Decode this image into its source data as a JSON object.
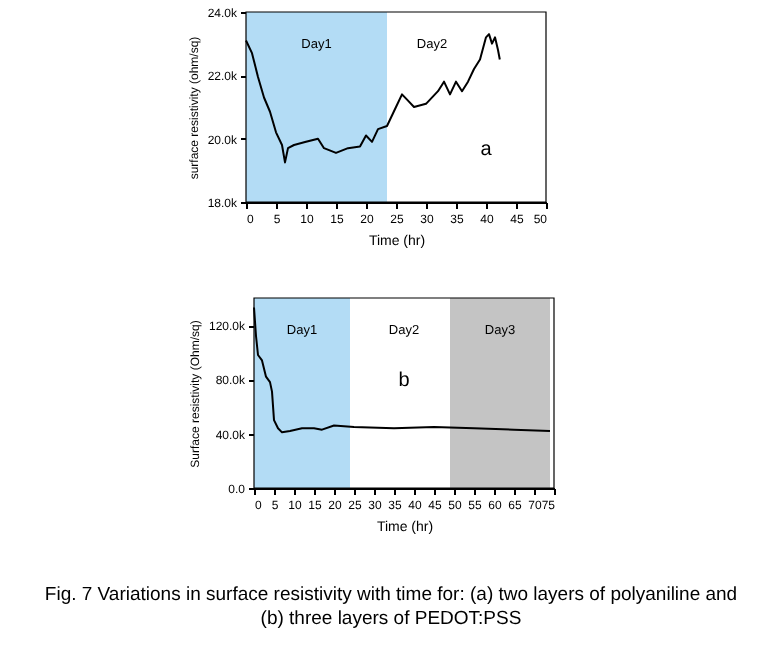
{
  "chart_data": [
    {
      "type": "line",
      "xlabel": "Time (hr)",
      "ylabel": "surface resistivity (ohm/sq)",
      "x": [
        0,
        1,
        2,
        3,
        4,
        5,
        6,
        6.5,
        7,
        8,
        10,
        12,
        13,
        15,
        17,
        19,
        20,
        21,
        22,
        23.5,
        25,
        26,
        27,
        28,
        30,
        32,
        33,
        34,
        35,
        36,
        37,
        38,
        39,
        40,
        40.5,
        41,
        41.5,
        42,
        42.3
      ],
      "series": [
        {
          "color": "#000000",
          "values": [
            23100,
            22700,
            21950,
            21300,
            20850,
            20200,
            19800,
            19250,
            19700,
            19800,
            19900,
            20000,
            19700,
            19550,
            19700,
            19750,
            20100,
            19900,
            20300,
            20400,
            21000,
            21400,
            21200,
            21000,
            21100,
            21500,
            21800,
            21400,
            21800,
            21500,
            21800,
            22200,
            22500,
            23200,
            23300,
            23000,
            23200,
            22800,
            22500
          ]
        }
      ],
      "xlim": [
        0,
        50
      ],
      "xticks": [
        0,
        5,
        10,
        15,
        20,
        25,
        30,
        35,
        40,
        45,
        50
      ],
      "ylim": [
        18000,
        24000
      ],
      "yticks": [
        {
          "value": 18000,
          "label": "18.0k"
        },
        {
          "value": 20000,
          "label": "20.0k"
        },
        {
          "value": 22000,
          "label": "22.0k"
        },
        {
          "value": 24000,
          "label": "24.0k"
        }
      ],
      "bands": [
        {
          "axis": "x",
          "from": 0,
          "to": 23.5,
          "label": "Day1",
          "color": "#b3dcf5"
        }
      ],
      "annotations": [
        "Day2",
        "a"
      ]
    },
    {
      "type": "line",
      "xlabel": "Time (hr)",
      "ylabel": "Surface resistivity (Ohm/sq)",
      "x": [
        0,
        0.5,
        1,
        2,
        3,
        4,
        4.5,
        5,
        6,
        7,
        9,
        12,
        15,
        17,
        20,
        25,
        35,
        45,
        55,
        65,
        74
      ],
      "series": [
        {
          "color": "#000000",
          "values": [
            133000,
            112000,
            98000,
            94000,
            82000,
            78000,
            71000,
            50000,
            44000,
            41000,
            42000,
            44000,
            44000,
            43000,
            46000,
            45000,
            44000,
            45000,
            44000,
            43000,
            42000
          ]
        }
      ],
      "xlim": [
        0,
        75
      ],
      "xticks": [
        0,
        5,
        10,
        15,
        20,
        25,
        30,
        35,
        40,
        45,
        50,
        55,
        60,
        65,
        70,
        75
      ],
      "ylim": [
        0,
        140000
      ],
      "yticks": [
        {
          "value": 0,
          "label": "0.0"
        },
        {
          "value": 40000,
          "label": "40.0k"
        },
        {
          "value": 80000,
          "label": "80.0k"
        },
        {
          "value": 120000,
          "label": "120.0k"
        }
      ],
      "bands": [
        {
          "axis": "x",
          "from": 0,
          "to": 24,
          "label": "Day1",
          "color": "#b3dcf5"
        },
        {
          "axis": "x",
          "from": 49,
          "to": 74,
          "label": "Day3",
          "color": "#c4c4c4"
        }
      ],
      "annotations": [
        "Day2",
        "b",
        "Fig. 7 Variations in surface resistivity with time for: (a) two layers of polyaniline and (b) three layers of PEDOT:PSS"
      ]
    }
  ]
}
